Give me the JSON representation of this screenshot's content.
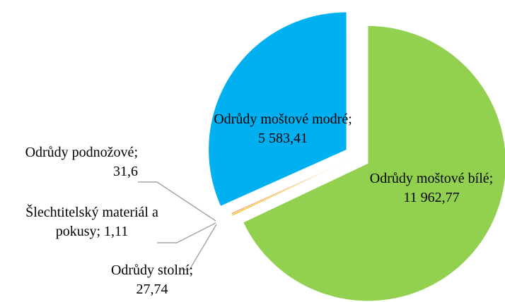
{
  "chart_data": {
    "type": "pie",
    "categories": [
      "Odrůdy moštové bílé",
      "Odrůdy stolní",
      "Šlechtitelský materiál a pokusy",
      "Odrůdy podnožové",
      "Odrůdy moštové modré"
    ],
    "values": [
      11962.77,
      27.74,
      1.11,
      31.6,
      5583.41
    ],
    "value_labels": [
      "11 962,77",
      "27,74",
      "1,11",
      "31,6",
      "5 583,41"
    ],
    "label_separator": "; ",
    "colors": [
      "#92d050",
      "#ffc000",
      "#ed7d31",
      "#f4b183",
      "#00b0f0"
    ]
  }
}
